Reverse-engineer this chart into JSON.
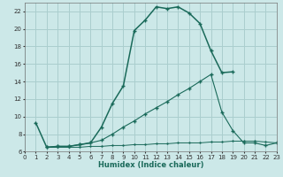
{
  "xlabel": "Humidex (Indice chaleur)",
  "bg_color": "#cce8e8",
  "grid_color": "#aacece",
  "line_color": "#1a6a5a",
  "xlim": [
    0,
    23
  ],
  "ylim": [
    6,
    23
  ],
  "xticks": [
    0,
    1,
    2,
    3,
    4,
    5,
    6,
    7,
    8,
    9,
    10,
    11,
    12,
    13,
    14,
    15,
    16,
    17,
    18,
    19,
    20,
    21,
    22,
    23
  ],
  "yticks": [
    6,
    8,
    10,
    12,
    14,
    16,
    18,
    20,
    22
  ],
  "line1_x": [
    1,
    2,
    3,
    4,
    5,
    6,
    7,
    8,
    9,
    10,
    11,
    12,
    13,
    14,
    15,
    16,
    17,
    18,
    19
  ],
  "line1_y": [
    9.3,
    6.5,
    6.6,
    6.6,
    6.8,
    7.0,
    8.8,
    11.5,
    13.5,
    19.8,
    21.0,
    22.5,
    22.3,
    22.5,
    21.8,
    20.6,
    17.5,
    15.0,
    15.1
  ],
  "line2_x": [
    2,
    3,
    4,
    5,
    6,
    7,
    8,
    9,
    10,
    11,
    12,
    13,
    14,
    15,
    16,
    17,
    18,
    19,
    20,
    21,
    22,
    23
  ],
  "line2_y": [
    6.5,
    6.6,
    6.6,
    6.8,
    7.0,
    7.3,
    8.0,
    8.8,
    9.5,
    10.3,
    11.0,
    11.7,
    12.5,
    13.2,
    14.0,
    14.8,
    10.5,
    8.4,
    7.0,
    7.0,
    6.7,
    7.0
  ],
  "line3_x": [
    2,
    3,
    4,
    5,
    6,
    7,
    8,
    9,
    10,
    11,
    12,
    13,
    14,
    15,
    16,
    17,
    18,
    19,
    20,
    21,
    22,
    23
  ],
  "line3_y": [
    6.5,
    6.5,
    6.5,
    6.5,
    6.6,
    6.6,
    6.7,
    6.7,
    6.8,
    6.8,
    6.9,
    6.9,
    7.0,
    7.0,
    7.0,
    7.1,
    7.1,
    7.2,
    7.2,
    7.2,
    7.1,
    7.0
  ]
}
